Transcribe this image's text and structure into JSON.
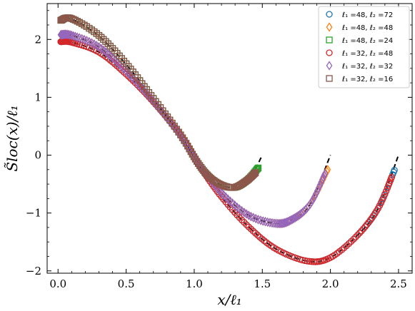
{
  "chart_data": {
    "type": "scatter",
    "xlabel": "x/ℓ₁",
    "ylabel": "S̃loc(x)/ℓ₁",
    "xlim": [
      -0.08,
      2.6
    ],
    "ylim": [
      -2.04,
      2.62
    ],
    "x_ticks": [
      0.0,
      0.5,
      1.0,
      1.5,
      2.0,
      2.5
    ],
    "x_tick_labels": [
      "0.0",
      "0.5",
      "1.0",
      "1.5",
      "2.0",
      "2.5"
    ],
    "y_ticks": [
      -2,
      -1,
      0,
      1,
      2
    ],
    "y_tick_labels": [
      "−2",
      "−1",
      "0",
      "1",
      "2"
    ],
    "grid": false,
    "legend_position": "top-right",
    "series": [
      {
        "name": "ℓ₁ =48, ℓ₂ =72",
        "color": "#1f77b4",
        "marker": "circle",
        "keypoints": [
          [
            0.02,
            1.96
          ],
          [
            0.1,
            1.95
          ],
          [
            0.3,
            1.78
          ],
          [
            0.5,
            1.4
          ],
          [
            0.7,
            0.92
          ],
          [
            0.9,
            0.34
          ],
          [
            1.04,
            -0.19
          ],
          [
            1.2,
            -0.72
          ],
          [
            1.4,
            -1.24
          ],
          [
            1.6,
            -1.62
          ],
          [
            1.83,
            -1.83
          ],
          [
            2.0,
            -1.77
          ],
          [
            2.2,
            -1.38
          ],
          [
            2.35,
            -0.92
          ],
          [
            2.47,
            -0.26
          ]
        ]
      },
      {
        "name": "ℓ₁ =48, ℓ₂ =48",
        "color": "#ff7f0e",
        "marker": "diamond",
        "keypoints": [
          [
            0.02,
            2.08
          ],
          [
            0.1,
            2.07
          ],
          [
            0.3,
            1.87
          ],
          [
            0.5,
            1.45
          ],
          [
            0.7,
            0.93
          ],
          [
            0.9,
            0.33
          ],
          [
            1.04,
            -0.18
          ],
          [
            1.2,
            -0.65
          ],
          [
            1.4,
            -1.04
          ],
          [
            1.6,
            -1.18
          ],
          [
            1.72,
            -1.11
          ],
          [
            1.85,
            -0.85
          ],
          [
            1.98,
            -0.25
          ]
        ]
      },
      {
        "name": "ℓ₁ =48, ℓ₂ =24",
        "color": "#2ca02c",
        "marker": "square",
        "keypoints": [
          [
            0.02,
            2.33
          ],
          [
            0.1,
            2.36
          ],
          [
            0.3,
            2.07
          ],
          [
            0.5,
            1.58
          ],
          [
            0.7,
            0.98
          ],
          [
            0.9,
            0.35
          ],
          [
            1.04,
            -0.18
          ],
          [
            1.15,
            -0.45
          ],
          [
            1.28,
            -0.56
          ],
          [
            1.38,
            -0.45
          ],
          [
            1.47,
            -0.22
          ]
        ]
      },
      {
        "name": "ℓ₁ =32, ℓ₂ =48",
        "color": "#d62728",
        "marker": "circle",
        "keypoints": [
          [
            0.02,
            1.96
          ],
          [
            0.1,
            1.95
          ],
          [
            0.3,
            1.78
          ],
          [
            0.5,
            1.4
          ],
          [
            0.7,
            0.92
          ],
          [
            0.9,
            0.34
          ],
          [
            1.04,
            -0.19
          ],
          [
            1.2,
            -0.72
          ],
          [
            1.4,
            -1.24
          ],
          [
            1.6,
            -1.62
          ],
          [
            1.83,
            -1.83
          ],
          [
            2.0,
            -1.77
          ],
          [
            2.2,
            -1.38
          ],
          [
            2.35,
            -0.92
          ],
          [
            2.45,
            -0.38
          ]
        ]
      },
      {
        "name": "ℓ₁ =32, ℓ₂ =32",
        "color": "#9467bd",
        "marker": "diamond",
        "keypoints": [
          [
            0.02,
            2.08
          ],
          [
            0.1,
            2.07
          ],
          [
            0.3,
            1.87
          ],
          [
            0.5,
            1.45
          ],
          [
            0.7,
            0.93
          ],
          [
            0.9,
            0.33
          ],
          [
            1.04,
            -0.18
          ],
          [
            1.2,
            -0.65
          ],
          [
            1.4,
            -1.04
          ],
          [
            1.6,
            -1.18
          ],
          [
            1.72,
            -1.11
          ],
          [
            1.85,
            -0.85
          ],
          [
            1.96,
            -0.32
          ]
        ]
      },
      {
        "name": "ℓ₁ =32, ℓ₂ =16",
        "color": "#8c564b",
        "marker": "square",
        "keypoints": [
          [
            0.02,
            2.33
          ],
          [
            0.1,
            2.36
          ],
          [
            0.3,
            2.07
          ],
          [
            0.5,
            1.58
          ],
          [
            0.7,
            0.98
          ],
          [
            0.9,
            0.35
          ],
          [
            1.04,
            -0.18
          ],
          [
            1.15,
            -0.45
          ],
          [
            1.28,
            -0.56
          ],
          [
            1.38,
            -0.45
          ],
          [
            1.45,
            -0.3
          ]
        ]
      }
    ],
    "theory_curves": [
      {
        "style": "dashed",
        "color": "#000000",
        "points": [
          [
            0.0,
            2.36
          ],
          [
            0.1,
            2.35
          ],
          [
            0.3,
            2.06
          ],
          [
            0.5,
            1.57
          ],
          [
            0.7,
            0.97
          ],
          [
            0.9,
            0.35
          ],
          [
            1.04,
            -0.18
          ],
          [
            1.15,
            -0.45
          ],
          [
            1.28,
            -0.56
          ],
          [
            1.4,
            -0.42
          ],
          [
            1.5,
            0.0
          ]
        ]
      },
      {
        "style": "dashed",
        "color": "#000000",
        "points": [
          [
            0.0,
            2.08
          ],
          [
            0.1,
            2.07
          ],
          [
            0.3,
            1.87
          ],
          [
            0.5,
            1.45
          ],
          [
            0.7,
            0.93
          ],
          [
            0.9,
            0.33
          ],
          [
            1.04,
            -0.18
          ],
          [
            1.2,
            -0.65
          ],
          [
            1.4,
            -1.04
          ],
          [
            1.6,
            -1.18
          ],
          [
            1.72,
            -1.11
          ],
          [
            1.85,
            -0.85
          ],
          [
            2.0,
            0.0
          ]
        ]
      },
      {
        "style": "dashed",
        "color": "#000000",
        "points": [
          [
            0.0,
            1.95
          ],
          [
            0.1,
            1.95
          ],
          [
            0.3,
            1.78
          ],
          [
            0.5,
            1.4
          ],
          [
            0.7,
            0.92
          ],
          [
            0.9,
            0.34
          ],
          [
            1.04,
            -0.19
          ],
          [
            1.2,
            -0.72
          ],
          [
            1.4,
            -1.24
          ],
          [
            1.6,
            -1.62
          ],
          [
            1.83,
            -1.83
          ],
          [
            2.0,
            -1.77
          ],
          [
            2.2,
            -1.38
          ],
          [
            2.35,
            -0.92
          ],
          [
            2.5,
            0.0
          ]
        ]
      }
    ]
  }
}
